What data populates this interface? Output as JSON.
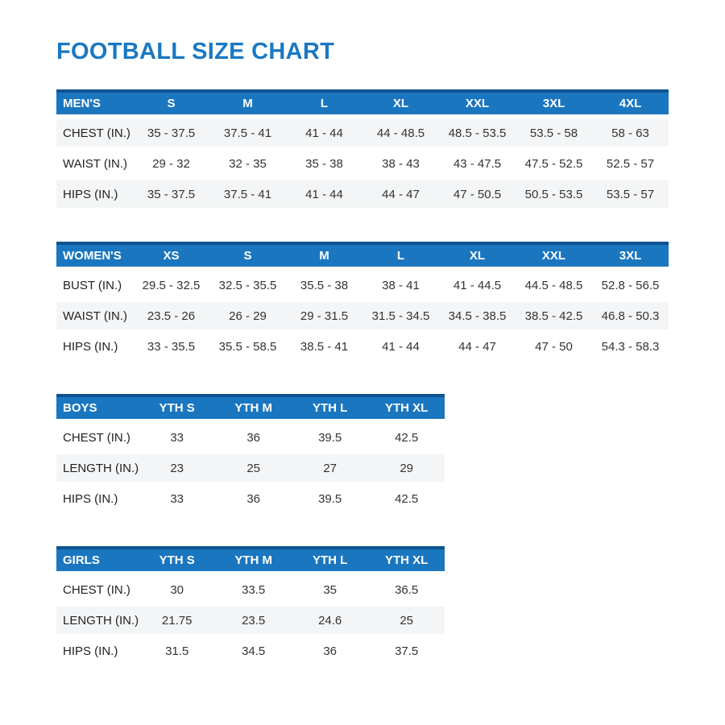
{
  "title": "FOOTBALL SIZE CHART",
  "colors": {
    "accent_blue": "#1b76c0",
    "header_top_edge": "#0f5392",
    "row_stripe": "#f4f5f6",
    "title_text": "#1a78c2",
    "body_text": "#333333"
  },
  "tables": [
    {
      "name": "MEN'S",
      "columns": [
        "S",
        "M",
        "L",
        "XL",
        "XXL",
        "3XL",
        "4XL"
      ],
      "rows": [
        {
          "label": "CHEST (IN.)",
          "values": [
            "35 - 37.5",
            "37.5 - 41",
            "41 - 44",
            "44 - 48.5",
            "48.5 - 53.5",
            "53.5 - 58",
            "58 - 63"
          ]
        },
        {
          "label": "WAIST (IN.)",
          "values": [
            "29 - 32",
            "32 - 35",
            "35 - 38",
            "38 - 43",
            "43 - 47.5",
            "47.5 - 52.5",
            "52.5 - 57"
          ]
        },
        {
          "label": "HIPS (IN.)",
          "values": [
            "35 - 37.5",
            "37.5 - 41",
            "41 - 44",
            "44 - 47",
            "47 - 50.5",
            "50.5 - 53.5",
            "53.5 - 57"
          ]
        }
      ],
      "shaded_rows": [
        0,
        2
      ]
    },
    {
      "name": "WOMEN'S",
      "columns": [
        "XS",
        "S",
        "M",
        "L",
        "XL",
        "XXL",
        "3XL"
      ],
      "rows": [
        {
          "label": "BUST (IN.)",
          "values": [
            "29.5 - 32.5",
            "32.5 - 35.5",
            "35.5 - 38",
            "38 - 41",
            "41 - 44.5",
            "44.5 - 48.5",
            "52.8 - 56.5"
          ]
        },
        {
          "label": "WAIST (IN.)",
          "values": [
            "23.5 - 26",
            "26 - 29",
            "29 - 31.5",
            "31.5 - 34.5",
            "34.5 - 38.5",
            "38.5 - 42.5",
            "46.8 - 50.3"
          ]
        },
        {
          "label": "HIPS (IN.)",
          "values": [
            "33 - 35.5",
            "35.5 - 58.5",
            "38.5 - 41",
            "41 - 44",
            "44 - 47",
            "47 - 50",
            "54.3 - 58.3"
          ]
        }
      ],
      "shaded_rows": [
        1
      ]
    },
    {
      "name": "BOYS",
      "columns": [
        "YTH S",
        "YTH M",
        "YTH L",
        "YTH XL"
      ],
      "rows": [
        {
          "label": "CHEST (IN.)",
          "values": [
            "33",
            "36",
            "39.5",
            "42.5"
          ]
        },
        {
          "label": "LENGTH (IN.)",
          "values": [
            "23",
            "25",
            "27",
            "29"
          ]
        },
        {
          "label": "HIPS (IN.)",
          "values": [
            "33",
            "36",
            "39.5",
            "42.5"
          ]
        }
      ],
      "shaded_rows": [
        1
      ]
    },
    {
      "name": "GIRLS",
      "columns": [
        "YTH S",
        "YTH M",
        "YTH L",
        "YTH XL"
      ],
      "rows": [
        {
          "label": "CHEST (IN.)",
          "values": [
            "30",
            "33.5",
            "35",
            "36.5"
          ]
        },
        {
          "label": "LENGTH (IN.)",
          "values": [
            "21.75",
            "23.5",
            "24.6",
            "25"
          ]
        },
        {
          "label": "HIPS (IN.)",
          "values": [
            "31.5",
            "34.5",
            "36",
            "37.5"
          ]
        }
      ],
      "shaded_rows": [
        1
      ]
    }
  ]
}
